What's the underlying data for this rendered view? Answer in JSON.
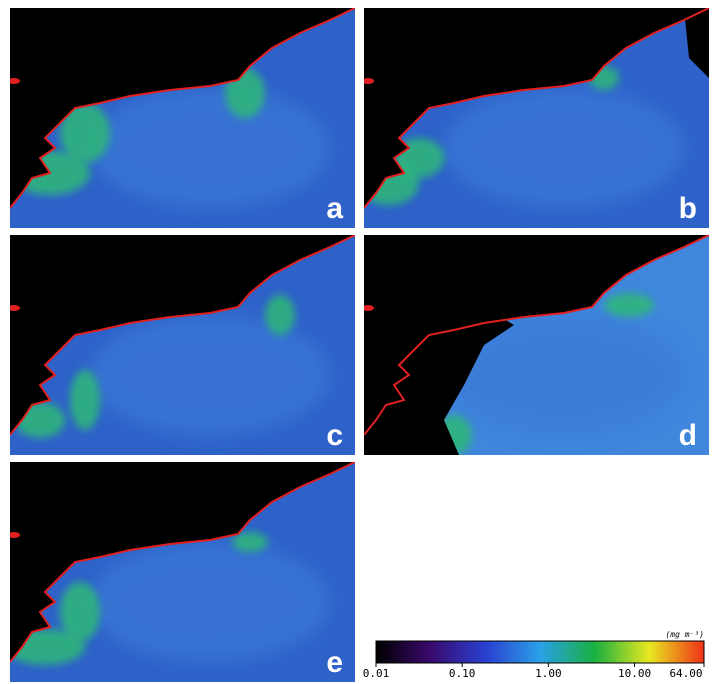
{
  "figure": {
    "panels": [
      {
        "label": "a"
      },
      {
        "label": "b"
      },
      {
        "label": "c"
      },
      {
        "label": "d"
      },
      {
        "label": "e"
      }
    ],
    "colorbar": {
      "unit": "(mg m⁻³)",
      "scale": "log",
      "lim": [
        0.01,
        64
      ],
      "ticks": [
        0.01,
        {
          "value": 0.1,
          "label": "0.10"
        },
        {
          "value": 1,
          "label": "1.00"
        },
        {
          "value": 10,
          "label": "10.00"
        },
        {
          "value": 64,
          "label": "64.00"
        }
      ],
      "colors": [
        "#000000",
        "#3a0a6e",
        "#2a3fd0",
        "#2aa0e8",
        "#18b040",
        "#e8e820",
        "#f03018"
      ]
    }
  }
}
